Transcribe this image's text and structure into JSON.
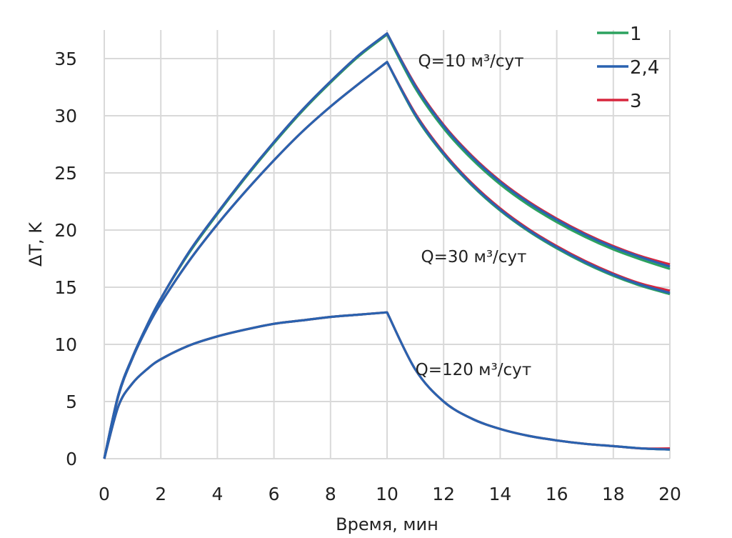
{
  "chart_data": {
    "type": "line",
    "title": "",
    "xlabel": "Время, мин",
    "ylabel": "ΔT, K",
    "xlim": [
      0,
      20
    ],
    "ylim": [
      0,
      37.5
    ],
    "xticks": [
      0,
      2,
      4,
      6,
      8,
      10,
      12,
      14,
      16,
      18,
      20
    ],
    "yticks": [
      0,
      5,
      10,
      15,
      20,
      25,
      30,
      35
    ],
    "grid": true,
    "legend": {
      "placement": "top-right",
      "entries": [
        {
          "label": "1",
          "color": "#2ca25f"
        },
        {
          "label": "2,4",
          "color": "#2a62b0"
        },
        {
          "label": "3",
          "color": "#d7263d"
        }
      ]
    },
    "annotations": [
      {
        "text": "Q=10 м³/сут",
        "x": 11.1,
        "y": 34.3
      },
      {
        "text": "Q=30 м³/сут",
        "x": 11.2,
        "y": 17.2
      },
      {
        "text": "Q=120 м³/сут",
        "x": 11.0,
        "y": 7.3
      }
    ],
    "x": [
      0,
      0.5,
      1,
      1.5,
      2,
      3,
      4,
      5,
      6,
      7,
      8,
      9,
      10,
      11,
      12,
      13,
      14,
      15,
      16,
      17,
      18,
      19,
      20
    ],
    "series": [
      {
        "name": "1 (Q=10)",
        "group": "Q=10",
        "color": "#2ca25f",
        "values": [
          0,
          5.6,
          8.9,
          11.6,
          14.0,
          18.0,
          21.4,
          24.6,
          27.6,
          30.4,
          32.9,
          35.2,
          37.1,
          32.4,
          28.9,
          26.2,
          24.0,
          22.2,
          20.7,
          19.4,
          18.3,
          17.4,
          16.6
        ]
      },
      {
        "name": "2,4 (Q=10)",
        "group": "Q=10",
        "color": "#2a62b0",
        "values": [
          0,
          5.6,
          8.9,
          11.6,
          14.0,
          18.1,
          21.5,
          24.7,
          27.7,
          30.5,
          33.0,
          35.3,
          37.2,
          32.6,
          29.1,
          26.4,
          24.2,
          22.4,
          20.9,
          19.6,
          18.5,
          17.6,
          16.8
        ]
      },
      {
        "name": "3 (Q=10)",
        "group": "Q=10",
        "color": "#d7263d",
        "values": [
          0,
          5.6,
          8.9,
          11.6,
          14.0,
          18.1,
          21.5,
          24.7,
          27.7,
          30.5,
          33.0,
          35.3,
          37.2,
          32.7,
          29.2,
          26.5,
          24.3,
          22.5,
          21.0,
          19.7,
          18.6,
          17.7,
          17.0
        ]
      },
      {
        "name": "1 (Q=30)",
        "group": "Q=30",
        "color": "#2ca25f",
        "values": [
          0,
          5.5,
          8.8,
          11.4,
          13.6,
          17.3,
          20.5,
          23.4,
          26.1,
          28.6,
          30.8,
          32.8,
          34.7,
          30.0,
          26.6,
          23.9,
          21.7,
          19.9,
          18.4,
          17.1,
          16.0,
          15.1,
          14.4
        ]
      },
      {
        "name": "2,4 (Q=30)",
        "group": "Q=30",
        "color": "#2a62b0",
        "values": [
          0,
          5.5,
          8.8,
          11.4,
          13.6,
          17.3,
          20.5,
          23.4,
          26.1,
          28.6,
          30.8,
          32.8,
          34.7,
          30.1,
          26.7,
          24.0,
          21.8,
          20.0,
          18.5,
          17.2,
          16.1,
          15.2,
          14.5
        ]
      },
      {
        "name": "3 (Q=30)",
        "group": "Q=30",
        "color": "#d7263d",
        "values": [
          0,
          5.5,
          8.8,
          11.4,
          13.6,
          17.3,
          20.5,
          23.4,
          26.1,
          28.6,
          30.8,
          32.8,
          34.7,
          30.2,
          26.8,
          24.1,
          21.9,
          20.1,
          18.6,
          17.3,
          16.2,
          15.3,
          14.7
        ]
      },
      {
        "name": "1 (Q=120)",
        "group": "Q=120",
        "color": "#2ca25f",
        "values": [
          0,
          4.6,
          6.6,
          7.8,
          8.7,
          9.9,
          10.7,
          11.3,
          11.8,
          12.1,
          12.4,
          12.6,
          12.8,
          7.8,
          5.0,
          3.5,
          2.6,
          2.0,
          1.6,
          1.3,
          1.1,
          0.9,
          0.8
        ]
      },
      {
        "name": "2,4 (Q=120)",
        "group": "Q=120",
        "color": "#2a62b0",
        "values": [
          0,
          4.6,
          6.6,
          7.8,
          8.7,
          9.9,
          10.7,
          11.3,
          11.8,
          12.1,
          12.4,
          12.6,
          12.8,
          7.8,
          5.0,
          3.5,
          2.6,
          2.0,
          1.6,
          1.3,
          1.1,
          0.9,
          0.8
        ]
      },
      {
        "name": "3 (Q=120)",
        "group": "Q=120",
        "color": "#d7263d",
        "values": [
          0,
          4.6,
          6.6,
          7.8,
          8.7,
          9.9,
          10.7,
          11.3,
          11.8,
          12.1,
          12.4,
          12.6,
          12.8,
          7.8,
          5.0,
          3.5,
          2.6,
          2.0,
          1.6,
          1.3,
          1.1,
          0.9,
          0.9
        ]
      }
    ]
  }
}
